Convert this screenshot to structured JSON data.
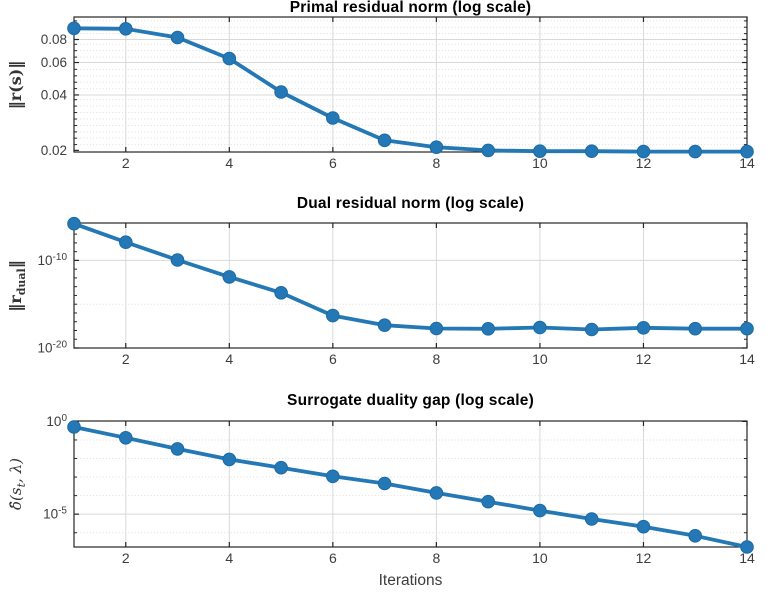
{
  "figure": {
    "background": "#ffffff"
  },
  "colors": {
    "line": "#2478b5",
    "marker_fill": "#2478b5",
    "marker_edge": "#1c6aa3",
    "axis": "#262626",
    "tick_label": "#3d3d3d",
    "grid_major": "#d9d9d9",
    "grid_minor": "#dedede",
    "title": "#000000"
  },
  "chart_data": [
    {
      "type": "line",
      "title": "Primal residual norm (log scale)",
      "ylabel": "‖r(s)‖",
      "ylabel_parts": {
        "pre": "‖r(s)‖",
        "sub": "",
        "post": ""
      },
      "xlabel": "",
      "x": [
        1,
        2,
        3,
        4,
        5,
        6,
        7,
        8,
        9,
        10,
        11,
        12,
        13,
        14
      ],
      "values": [
        0.092,
        0.0915,
        0.082,
        0.063,
        0.0415,
        0.03,
        0.0227,
        0.0208,
        0.02,
        0.0198,
        0.0198,
        0.0197,
        0.0197,
        0.0197
      ],
      "xlim": [
        1,
        14
      ],
      "ylim": [
        0.0196,
        0.106
      ],
      "yscale": "log",
      "grid": true,
      "xticks": [
        2,
        4,
        6,
        8,
        10,
        12,
        14
      ],
      "yticks": [
        {
          "v": 0.08,
          "label": "0.08"
        },
        {
          "v": 0.06,
          "label": "0.06"
        },
        {
          "v": 0.04,
          "label": "0.04"
        },
        {
          "v": 0.02,
          "label": "0.02"
        }
      ],
      "yminor": [
        0.0215,
        0.0233,
        0.0252,
        0.0273,
        0.0296,
        0.0321,
        0.0348,
        0.0377,
        0.0433,
        0.0469,
        0.0508,
        0.0551,
        0.0642,
        0.0696,
        0.0754,
        0.0861,
        0.0933,
        0.101
      ]
    },
    {
      "type": "line",
      "title": "Dual residual norm (log scale)",
      "ylabel": "‖r_dual‖",
      "ylabel_parts": {
        "pre": "‖r",
        "sub": "dual",
        "post": "‖"
      },
      "xlabel": "",
      "x": [
        1,
        2,
        3,
        4,
        5,
        6,
        7,
        8,
        9,
        10,
        11,
        12,
        13,
        14
      ],
      "values": [
        1.55e-06,
        1.2e-08,
        1.1e-10,
        1.3e-12,
        2e-14,
        5e-17,
        4e-18,
        1.7e-18,
        1.55e-18,
        2.2e-18,
        1.3e-18,
        2e-18,
        1.6e-18,
        1.6e-18
      ],
      "xlim": [
        1,
        14
      ],
      "ylim": [
        1e-20,
        1.86e-06
      ],
      "yscale": "log",
      "grid": true,
      "xticks": [
        2,
        4,
        6,
        8,
        10,
        12,
        14
      ],
      "yticks": [
        {
          "v": 1e-10,
          "base": "10",
          "exp": "-10"
        },
        {
          "v": 1e-20,
          "base": "10",
          "exp": "-20"
        }
      ],
      "yminor": [
        1e-15
      ],
      "yminorticks": [
        1e-07,
        1e-08,
        1e-09,
        1e-11,
        1e-12,
        1e-13,
        1e-14,
        1e-15,
        1e-16,
        1e-17,
        1e-18,
        1e-19
      ]
    },
    {
      "type": "line",
      "title": "Surrogate duality gap (log scale)",
      "ylabel": "δ̂(s_t, λ)",
      "ylabel_parts": {
        "pre": "δ̂(s",
        "sub": "t",
        "post": ", λ)"
      },
      "xlabel": "Iterations",
      "x": [
        1,
        2,
        3,
        4,
        5,
        6,
        7,
        8,
        9,
        10,
        11,
        12,
        13,
        14
      ],
      "values": [
        0.5,
        0.13,
        0.033,
        0.0089,
        0.0032,
        0.0011,
        0.00045,
        0.00014,
        4.7e-05,
        1.55e-05,
        5.5e-06,
        2.1e-06,
        6.8e-07,
        1.7e-07
      ],
      "xlim": [
        1,
        14
      ],
      "ylim": [
        1.7e-07,
        1.05
      ],
      "yscale": "log",
      "grid": true,
      "xticks": [
        2,
        4,
        6,
        8,
        10,
        12,
        14
      ],
      "yticks": [
        {
          "v": 1,
          "base": "10",
          "exp": "0"
        },
        {
          "v": 1e-05,
          "base": "10",
          "exp": "-5"
        }
      ],
      "yminor": [
        0.1,
        0.01,
        0.001,
        0.0001,
        1e-06
      ]
    }
  ]
}
